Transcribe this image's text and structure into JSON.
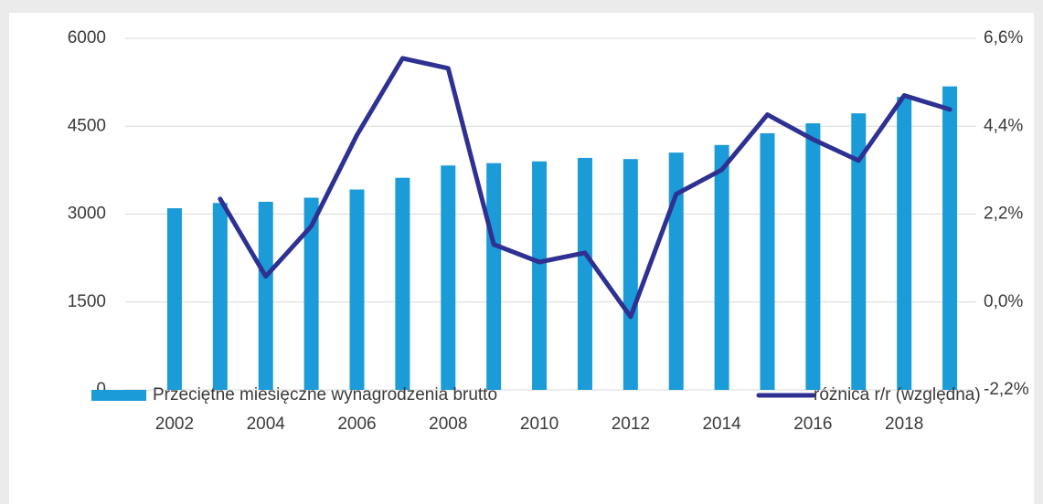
{
  "chart_data": {
    "type": "bar-line",
    "categories": [
      "2002",
      null,
      "2004",
      null,
      "2006",
      null,
      "2008",
      null,
      "2010",
      null,
      "2012",
      null,
      "2014",
      null,
      "2016",
      null,
      "2018",
      null
    ],
    "series": [
      {
        "name": "Przeciętne miesięczne wynagrodzenia brutto",
        "type": "bar",
        "color": "#1b9bd7",
        "values": [
          3100,
          3190,
          3210,
          3280,
          3420,
          3620,
          3830,
          3870,
          3900,
          3960,
          3940,
          4050,
          4180,
          4380,
          4550,
          4720,
          5000,
          5180
        ]
      },
      {
        "name": "różnica r/r (względna)",
        "type": "line",
        "axis": "y2",
        "color": "#2e3192",
        "values": [
          null,
          2.58,
          0.64,
          1.9,
          4.18,
          6.1,
          5.85,
          1.44,
          1.0,
          1.23,
          -0.37,
          2.7,
          3.31,
          4.69,
          4.07,
          3.54,
          5.17,
          4.82
        ]
      }
    ],
    "ylim": [
      0,
      6000
    ],
    "yticks": [
      0,
      1500,
      3000,
      4500,
      6000
    ],
    "y2lim": [
      -2.2,
      6.6
    ],
    "y2ticks": [
      {
        "value": -2.2,
        "label": "-2,2%"
      },
      {
        "value": 0,
        "label": "0,0%"
      },
      {
        "value": 2.2,
        "label": "2,2%"
      },
      {
        "value": 4.4,
        "label": "4,4%"
      },
      {
        "value": 6.6,
        "label": "6,6%"
      }
    ],
    "grid": true,
    "legend": "bottom"
  }
}
